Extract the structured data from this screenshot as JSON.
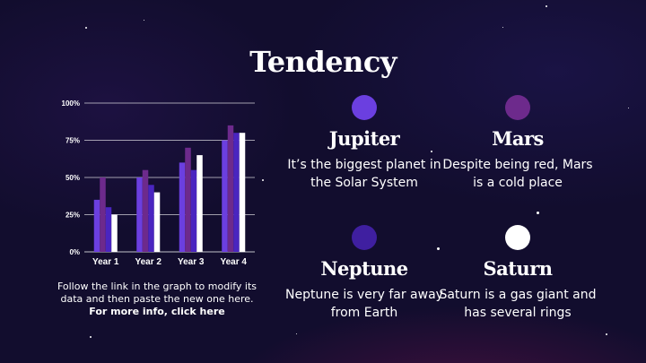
{
  "slide": {
    "title": "Tendency"
  },
  "colors": {
    "jupiter": "#6b3fe0",
    "mars": "#6d2a8c",
    "neptune": "#3f1fa0",
    "saturn": "#ffffff"
  },
  "chart_data": {
    "type": "bar",
    "categories": [
      "Year 1",
      "Year 2",
      "Year 3",
      "Year 4"
    ],
    "series": [
      {
        "values": [
          35,
          50,
          60,
          75
        ],
        "color": "#6b3fe0"
      },
      {
        "values": [
          50,
          55,
          70,
          85
        ],
        "color": "#6d2a8c"
      },
      {
        "values": [
          30,
          45,
          55,
          80
        ],
        "color": "#4a25c0"
      },
      {
        "values": [
          25,
          40,
          65,
          80
        ],
        "color": "#ffffff"
      }
    ],
    "ylim": [
      0,
      100
    ],
    "yticks": [
      "0%",
      "25%",
      "50%",
      "75%",
      "100%"
    ],
    "grid": true
  },
  "note": {
    "text": "Follow the link in the graph to modify its data and then paste the new one here.",
    "link": "For more info, click here"
  },
  "planets": [
    {
      "name": "Jupiter",
      "desc": "It’s the biggest planet in the Solar System",
      "icon": "jupiter-dot-icon"
    },
    {
      "name": "Mars",
      "desc": "Despite being red, Mars is a cold place",
      "icon": "mars-dot-icon"
    },
    {
      "name": "Neptune",
      "desc": "Neptune is very far away from Earth",
      "icon": "neptune-dot-icon"
    },
    {
      "name": "Saturn",
      "desc": "Saturn is a gas giant and has several rings",
      "icon": "saturn-dot-icon"
    }
  ]
}
